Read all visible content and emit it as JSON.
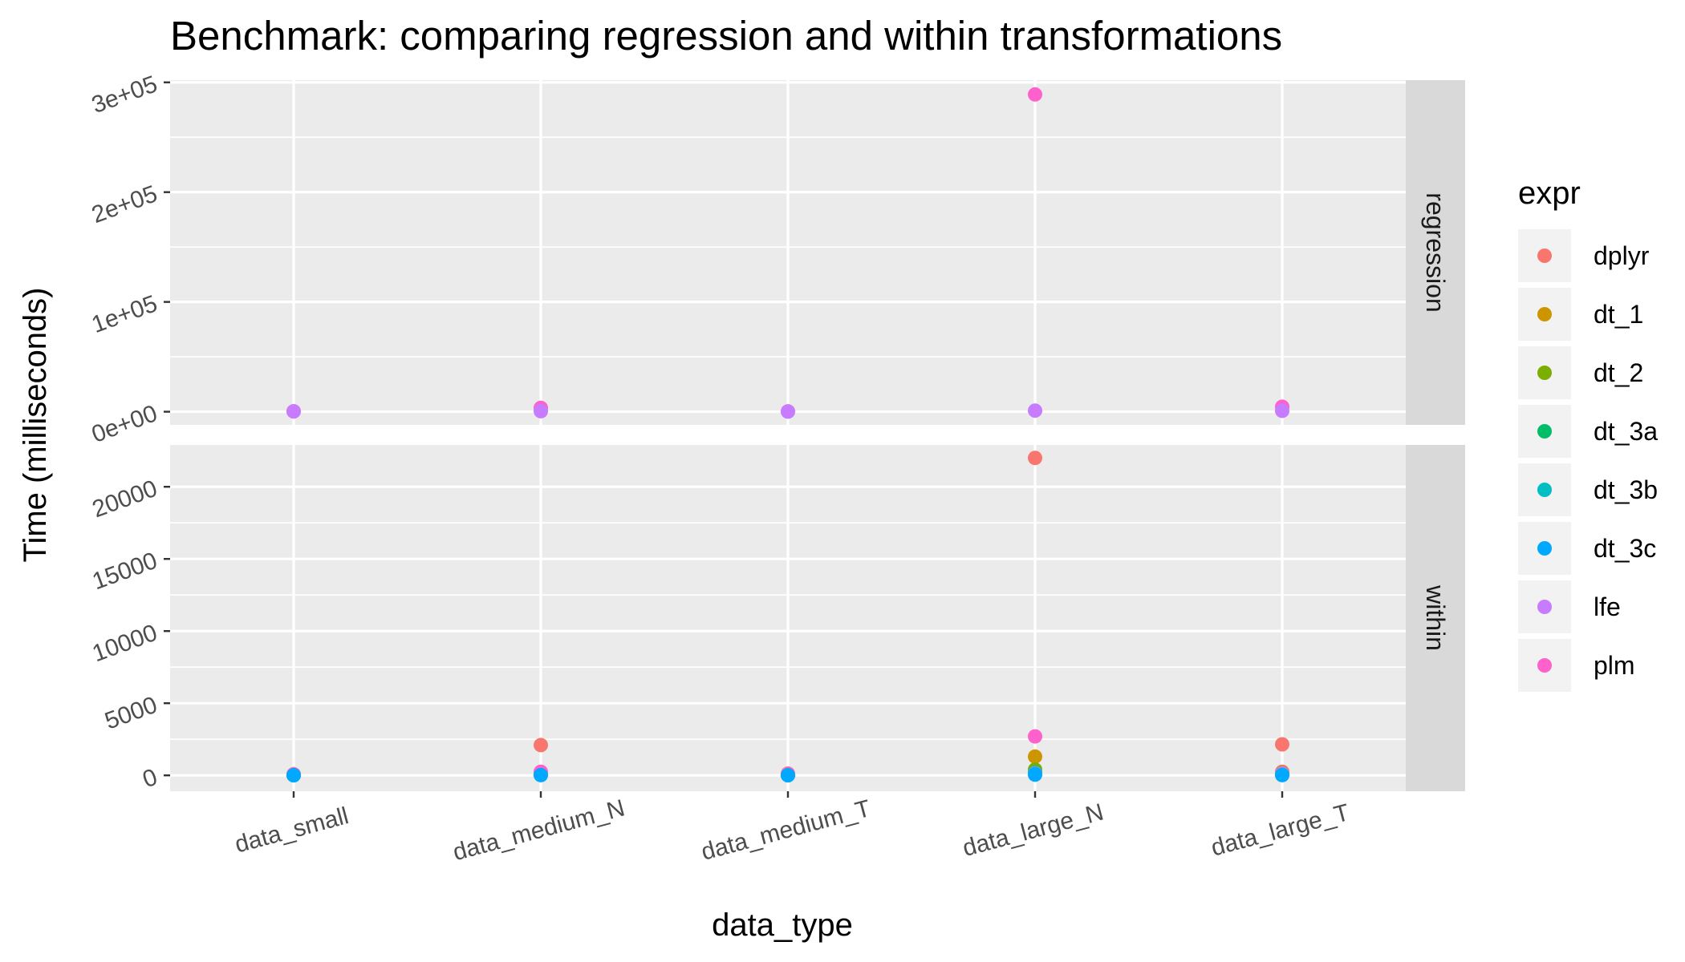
{
  "chart_data": {
    "type": "scatter",
    "title": "Benchmark: comparing regression and within transformations",
    "xlabel": "data_type",
    "ylabel": "Time (milliseconds)",
    "categories": [
      "data_small",
      "data_medium_N",
      "data_medium_T",
      "data_large_N",
      "data_large_T"
    ],
    "legend": {
      "title": "expr",
      "placement": "right",
      "entries": [
        {
          "name": "dplyr",
          "color": "#F8766D"
        },
        {
          "name": "dt_1",
          "color": "#CD9600"
        },
        {
          "name": "dt_2",
          "color": "#7CAE00"
        },
        {
          "name": "dt_3a",
          "color": "#00BE67"
        },
        {
          "name": "dt_3b",
          "color": "#00BFC4"
        },
        {
          "name": "dt_3c",
          "color": "#00A9FF"
        },
        {
          "name": "lfe",
          "color": "#C77CFF"
        },
        {
          "name": "plm",
          "color": "#FF61CC"
        }
      ]
    },
    "grid": true,
    "panels": [
      {
        "label": "regression",
        "ylim": [
          -12000,
          302000
        ],
        "yticks": [
          0,
          100000,
          200000,
          300000
        ],
        "ytick_labels": [
          "0e+00",
          "1e+05",
          "2e+05",
          "3e+05"
        ],
        "points": [
          {
            "category": "data_small",
            "expr": "plm",
            "y": 400
          },
          {
            "category": "data_small",
            "expr": "lfe",
            "y": 200
          },
          {
            "category": "data_medium_N",
            "expr": "plm",
            "y": 3500
          },
          {
            "category": "data_medium_N",
            "expr": "lfe",
            "y": 500
          },
          {
            "category": "data_medium_T",
            "expr": "plm",
            "y": 300
          },
          {
            "category": "data_medium_T",
            "expr": "lfe",
            "y": 100
          },
          {
            "category": "data_large_N",
            "expr": "plm",
            "y": 289000
          },
          {
            "category": "data_large_N",
            "expr": "lfe",
            "y": 1000
          },
          {
            "category": "data_large_T",
            "expr": "plm",
            "y": 4500
          },
          {
            "category": "data_large_T",
            "expr": "lfe",
            "y": 800
          }
        ]
      },
      {
        "label": "within",
        "ylim": [
          -1100,
          22900
        ],
        "yticks": [
          0,
          5000,
          10000,
          15000,
          20000
        ],
        "ytick_labels": [
          "0",
          "5000",
          "10000",
          "15000",
          "20000"
        ],
        "points": [
          {
            "category": "data_small",
            "expr": "dplyr",
            "y": 80
          },
          {
            "category": "data_small",
            "expr": "dt_1",
            "y": 40
          },
          {
            "category": "data_small",
            "expr": "dt_2",
            "y": 20
          },
          {
            "category": "data_small",
            "expr": "dt_3a",
            "y": 10
          },
          {
            "category": "data_small",
            "expr": "dt_3b",
            "y": 10
          },
          {
            "category": "data_small",
            "expr": "lfe",
            "y": 30
          },
          {
            "category": "data_small",
            "expr": "plm",
            "y": 60
          },
          {
            "category": "data_small",
            "expr": "dt_3c",
            "y": 10
          },
          {
            "category": "data_medium_N",
            "expr": "dplyr",
            "y": 2100
          },
          {
            "category": "data_medium_N",
            "expr": "dt_1",
            "y": 200
          },
          {
            "category": "data_medium_N",
            "expr": "dt_2",
            "y": 80
          },
          {
            "category": "data_medium_N",
            "expr": "dt_3a",
            "y": 40
          },
          {
            "category": "data_medium_N",
            "expr": "dt_3b",
            "y": 30
          },
          {
            "category": "data_medium_N",
            "expr": "lfe",
            "y": 150
          },
          {
            "category": "data_medium_N",
            "expr": "plm",
            "y": 250
          },
          {
            "category": "data_medium_N",
            "expr": "dt_3c",
            "y": 20
          },
          {
            "category": "data_medium_T",
            "expr": "dplyr",
            "y": 120
          },
          {
            "category": "data_medium_T",
            "expr": "dt_1",
            "y": 60
          },
          {
            "category": "data_medium_T",
            "expr": "dt_2",
            "y": 30
          },
          {
            "category": "data_medium_T",
            "expr": "dt_3a",
            "y": 10
          },
          {
            "category": "data_medium_T",
            "expr": "dt_3b",
            "y": 10
          },
          {
            "category": "data_medium_T",
            "expr": "lfe",
            "y": 40
          },
          {
            "category": "data_medium_T",
            "expr": "plm",
            "y": 90
          },
          {
            "category": "data_medium_T",
            "expr": "dt_3c",
            "y": 10
          },
          {
            "category": "data_large_N",
            "expr": "dplyr",
            "y": 22000
          },
          {
            "category": "data_large_N",
            "expr": "plm",
            "y": 2700
          },
          {
            "category": "data_large_N",
            "expr": "dt_1",
            "y": 1300
          },
          {
            "category": "data_large_N",
            "expr": "dt_2",
            "y": 400
          },
          {
            "category": "data_large_N",
            "expr": "dt_3a",
            "y": 200
          },
          {
            "category": "data_large_N",
            "expr": "lfe",
            "y": 150
          },
          {
            "category": "data_large_N",
            "expr": "dt_3b",
            "y": 100
          },
          {
            "category": "data_large_N",
            "expr": "dt_3c",
            "y": 50
          },
          {
            "category": "data_large_T",
            "expr": "dplyr",
            "y": 2150
          },
          {
            "category": "data_large_T",
            "expr": "plm",
            "y": 250
          },
          {
            "category": "data_large_T",
            "expr": "dt_1",
            "y": 200
          },
          {
            "category": "data_large_T",
            "expr": "dt_2",
            "y": 100
          },
          {
            "category": "data_large_T",
            "expr": "dt_3a",
            "y": 50
          },
          {
            "category": "data_large_T",
            "expr": "lfe",
            "y": 120
          },
          {
            "category": "data_large_T",
            "expr": "dt_3b",
            "y": 30
          },
          {
            "category": "data_large_T",
            "expr": "dt_3c",
            "y": 20
          }
        ]
      }
    ]
  }
}
